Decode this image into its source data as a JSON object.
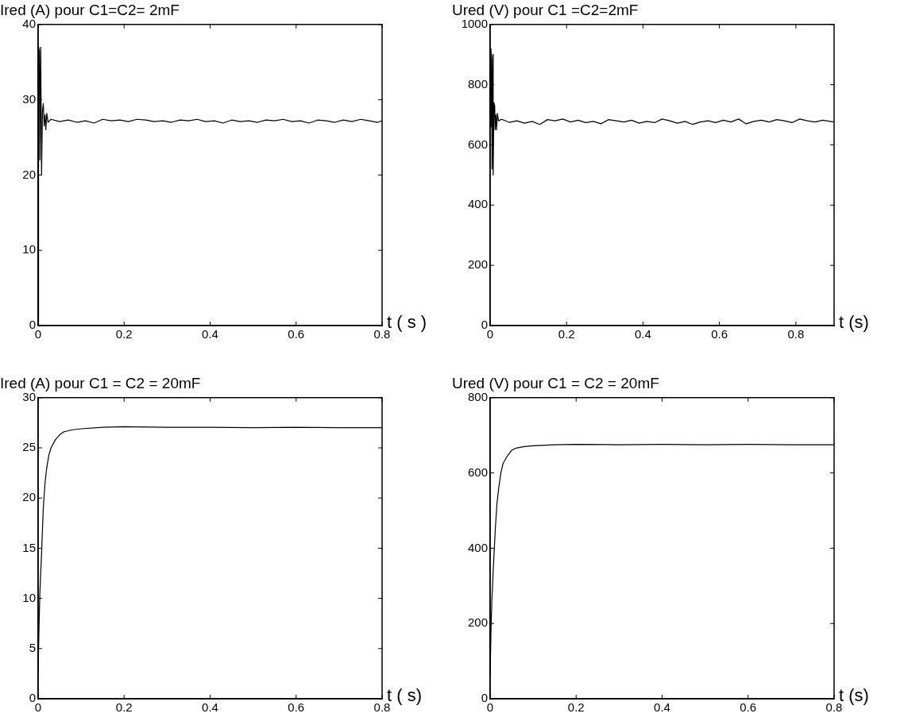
{
  "chart_data": [
    {
      "type": "line",
      "title": "Ired (A) pour C1=C2= 2mF",
      "xlabel": "t ( s )",
      "color": "#000000",
      "marker": "none",
      "xlim": [
        0,
        0.8
      ],
      "xticks": [
        0,
        0.2,
        0.4,
        0.6,
        0.8
      ],
      "ylim": [
        0,
        40
      ],
      "yticks": [
        0,
        10,
        20,
        30,
        40
      ],
      "x": [
        0,
        0.001,
        0.003,
        0.004,
        0.006,
        0.008,
        0.01,
        0.012,
        0.014,
        0.016,
        0.018,
        0.02,
        0.023,
        0.03,
        0.05,
        0.07,
        0.09,
        0.11,
        0.13,
        0.15,
        0.17,
        0.19,
        0.21,
        0.23,
        0.25,
        0.27,
        0.29,
        0.31,
        0.33,
        0.35,
        0.37,
        0.39,
        0.41,
        0.43,
        0.45,
        0.47,
        0.49,
        0.51,
        0.53,
        0.55,
        0.57,
        0.59,
        0.61,
        0.63,
        0.65,
        0.67,
        0.69,
        0.71,
        0.73,
        0.75,
        0.77,
        0.79,
        0.8
      ],
      "values": [
        0,
        37,
        36.5,
        22,
        37,
        20,
        28.5,
        29.5,
        26.5,
        28,
        26,
        28.2,
        27,
        27.4,
        27.1,
        27.3,
        27.0,
        27.2,
        26.9,
        27.4,
        27.2,
        27.3,
        27.1,
        27.4,
        27.3,
        27.1,
        27.2,
        27.0,
        27.3,
        27.2,
        27.4,
        27.1,
        27.2,
        26.9,
        27.3,
        27.1,
        27.2,
        27.0,
        27.3,
        27.2,
        27.4,
        27.1,
        27.2,
        26.9,
        27.3,
        27.2,
        27.0,
        27.3,
        27.1,
        27.4,
        27.2,
        27.0,
        27.2
      ]
    },
    {
      "type": "line",
      "title": "Ured (V) pour C1 =C2=2mF",
      "xlabel": "t (s)",
      "color": "#000000",
      "marker": "none",
      "xlim": [
        0,
        0.9
      ],
      "xticks": [
        0,
        0.2,
        0.4,
        0.6,
        0.8
      ],
      "ylim": [
        0,
        1000
      ],
      "yticks": [
        0,
        200,
        400,
        600,
        800,
        1000
      ],
      "x": [
        0,
        0.002,
        0.004,
        0.005,
        0.007,
        0.008,
        0.01,
        0.012,
        0.013,
        0.015,
        0.017,
        0.019,
        0.022,
        0.03,
        0.05,
        0.07,
        0.09,
        0.11,
        0.13,
        0.15,
        0.17,
        0.19,
        0.21,
        0.23,
        0.25,
        0.27,
        0.29,
        0.31,
        0.33,
        0.35,
        0.37,
        0.39,
        0.41,
        0.43,
        0.45,
        0.47,
        0.49,
        0.51,
        0.53,
        0.55,
        0.57,
        0.59,
        0.61,
        0.63,
        0.65,
        0.67,
        0.69,
        0.71,
        0.73,
        0.75,
        0.77,
        0.79,
        0.81,
        0.83,
        0.85,
        0.87,
        0.9
      ],
      "values": [
        660,
        920,
        880,
        520,
        900,
        500,
        740,
        730,
        650,
        700,
        650,
        705,
        680,
        685,
        675,
        680,
        672,
        678,
        668,
        684,
        680,
        686,
        676,
        682,
        674,
        678,
        670,
        684,
        680,
        676,
        682,
        672,
        678,
        674,
        686,
        680,
        672,
        678,
        668,
        676,
        680,
        674,
        682,
        676,
        686,
        670,
        678,
        682,
        676,
        684,
        680,
        674,
        686,
        680,
        676,
        682,
        676
      ]
    },
    {
      "type": "line",
      "title": "Ired (A) pour C1 = C2 = 20mF",
      "xlabel": "t ( s)",
      "color": "#000000",
      "marker": "none",
      "xlim": [
        0,
        0.8
      ],
      "xticks": [
        0,
        0.2,
        0.4,
        0.6,
        0.8
      ],
      "ylim": [
        0,
        30
      ],
      "yticks": [
        0,
        5,
        10,
        15,
        20,
        25,
        30
      ],
      "x": [
        0,
        0.002,
        0.004,
        0.008,
        0.012,
        0.016,
        0.02,
        0.025,
        0.03,
        0.04,
        0.05,
        0.06,
        0.08,
        0.1,
        0.15,
        0.2,
        0.3,
        0.4,
        0.5,
        0.6,
        0.7,
        0.8
      ],
      "values": [
        2.5,
        7,
        10.5,
        14.5,
        19,
        21.5,
        23,
        24.3,
        25,
        25.8,
        26.3,
        26.6,
        26.8,
        26.9,
        27.05,
        27.1,
        27.05,
        27.05,
        27.0,
        27.05,
        27.0,
        27.0
      ]
    },
    {
      "type": "line",
      "title": "Ured (V) pour C1 = C2 = 20mF",
      "xlabel": "t (s)",
      "color": "#000000",
      "marker": "none",
      "xlim": [
        0,
        0.8
      ],
      "xticks": [
        0,
        0.2,
        0.4,
        0.6,
        0.8
      ],
      "ylim": [
        0,
        800
      ],
      "yticks": [
        0,
        200,
        400,
        600,
        800
      ],
      "x": [
        0,
        0.002,
        0.004,
        0.008,
        0.012,
        0.016,
        0.02,
        0.025,
        0.03,
        0.04,
        0.05,
        0.06,
        0.08,
        0.1,
        0.15,
        0.2,
        0.3,
        0.4,
        0.5,
        0.6,
        0.7,
        0.8
      ],
      "values": [
        60,
        180,
        260,
        360,
        450,
        520,
        560,
        600,
        625,
        645,
        660,
        666,
        670,
        672,
        675,
        676,
        675,
        676,
        675,
        676,
        675,
        675
      ]
    }
  ]
}
